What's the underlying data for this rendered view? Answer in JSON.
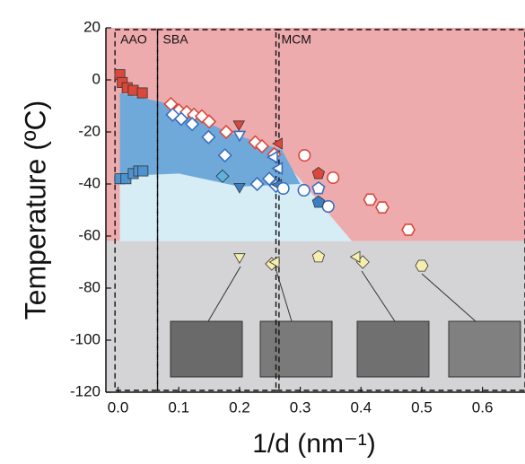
{
  "chart_data": {
    "type": "scatter",
    "y_label": "Temperature (ºC)",
    "x_label": "1/d (nm⁻¹)",
    "xlim": [
      -0.02,
      0.67
    ],
    "ylim": [
      -120,
      20
    ],
    "xticks": [
      {
        "value": 0,
        "label": "0.0"
      },
      0.1,
      0.2,
      0.3,
      0.4,
      0.5,
      0.6
    ],
    "yticks": [
      20,
      0,
      -20,
      -40,
      -60,
      -80,
      -100,
      -120
    ],
    "zones": [
      {
        "label": "AAO",
        "x": [
          -0.005,
          0.065
        ]
      },
      {
        "label": "SBA",
        "x": [
          0.065,
          0.265
        ]
      },
      {
        "label": "MCM",
        "x": [
          0.26,
          0.67
        ]
      }
    ],
    "regions": [
      {
        "color": "#eeabae",
        "x": [
          -0.02,
          0.67,
          0.67,
          -0.02
        ],
        "y": [
          20,
          20,
          -62,
          -62
        ]
      },
      {
        "color": "#d4d4d6",
        "x": [
          -0.02,
          0.67,
          0.67,
          -0.02
        ],
        "y": [
          -62,
          -62,
          -120,
          -120
        ]
      },
      {
        "color": "#d6edf6",
        "x": [
          0.003,
          0.1,
          0.27,
          0.385,
          0.003
        ],
        "y": [
          -5,
          -12,
          -30,
          -62,
          -62
        ]
      },
      {
        "color": "#6fa9d9",
        "x": [
          0.003,
          0.08,
          0.18,
          0.27,
          0.3,
          0.2,
          0.1,
          0.003
        ],
        "y": [
          -5,
          -9,
          -20,
          -27,
          -40,
          -41,
          -36,
          -37
        ]
      }
    ],
    "series": [
      {
        "marker": "square",
        "color": "#d9483b",
        "filled": true,
        "x": [
          0.003,
          0.007,
          0.015,
          0.025,
          0.04
        ],
        "values": [
          2,
          -1,
          -3,
          -4,
          -5
        ]
      },
      {
        "marker": "square",
        "color": "#4d93cf",
        "filled": true,
        "x": [
          0.003,
          0.013,
          0.025,
          0.034,
          0.041
        ],
        "values": [
          -38,
          -38,
          -36,
          -35,
          -35
        ]
      },
      {
        "marker": "diamond",
        "color": "#d9483b",
        "filled": false,
        "x": [
          0.087,
          0.1,
          0.113,
          0.125,
          0.138,
          0.15,
          0.178,
          0.226,
          0.237,
          0.257
        ],
        "values": [
          -9.3,
          -11.7,
          -12.4,
          -13.4,
          -14,
          -16,
          -20,
          -24,
          -25.5,
          -28.6
        ]
      },
      {
        "marker": "diamond",
        "color": "#3b6fc0",
        "filled": false,
        "x": [
          0.09,
          0.104,
          0.122,
          0.149,
          0.176,
          0.229,
          0.249,
          0.26
        ],
        "values": [
          -13.4,
          -15,
          -17,
          -22,
          -29,
          -40,
          -38,
          -40.7
        ]
      },
      {
        "marker": "diamond",
        "color": "#5cb3e0",
        "filled": true,
        "x": [
          0.172
        ],
        "values": [
          -37
        ]
      },
      {
        "marker": "tri-down",
        "color": "#d9483b",
        "filled": true,
        "x": [
          0.199
        ],
        "values": [
          -17
        ]
      },
      {
        "marker": "tri-down",
        "color": "#3b6fc0",
        "filled": false,
        "x": [
          0.2
        ],
        "values": [
          -21
        ]
      },
      {
        "marker": "tri-down",
        "color": "#3b7fc4",
        "filled": true,
        "x": [
          0.2
        ],
        "values": [
          -41
        ]
      },
      {
        "marker": "tri-left",
        "color": "#d9483b",
        "filled": true,
        "x": [
          0.265
        ],
        "values": [
          -24.5
        ]
      },
      {
        "marker": "tri-left",
        "color": "#3b6fc0",
        "filled": false,
        "x": [
          0.257,
          0.265
        ],
        "values": [
          -29.7,
          -34
        ]
      },
      {
        "marker": "tri-left",
        "color": "#3b7fc4",
        "filled": true,
        "x": [
          0.264
        ],
        "values": [
          -40.3
        ]
      },
      {
        "marker": "circle",
        "color": "#d9483b",
        "filled": false,
        "x": [
          0.307,
          0.354
        ],
        "values": [
          -29,
          -37.6
        ]
      },
      {
        "marker": "hexagon",
        "color": "#d9483b",
        "filled": false,
        "x": [
          0.415,
          0.435,
          0.478
        ],
        "values": [
          -46,
          -49,
          -57.6
        ]
      },
      {
        "marker": "circle",
        "color": "#3b6fc0",
        "filled": false,
        "x": [
          0.272,
          0.306,
          0.346
        ],
        "values": [
          -41.7,
          -42.4,
          -48.6
        ]
      },
      {
        "marker": "pentagon",
        "color": "#d9483b",
        "filled": true,
        "x": [
          0.33
        ],
        "values": [
          -36
        ]
      },
      {
        "marker": "pentagon",
        "color": "#3b6fc0",
        "filled": false,
        "x": [
          0.33
        ],
        "values": [
          -41.7
        ]
      },
      {
        "marker": "pentagon",
        "color": "#3b7fc4",
        "filled": true,
        "x": [
          0.33
        ],
        "values": [
          -47
        ]
      },
      {
        "marker": "tri-down",
        "color": "#f6eeae",
        "filled": true,
        "x": [
          0.2
        ],
        "values": [
          -68
        ]
      },
      {
        "marker": "diamond",
        "color": "#f6eeae",
        "filled": true,
        "x": [
          0.253,
          0.403
        ],
        "values": [
          -70.7,
          -70
        ]
      },
      {
        "marker": "tri-left",
        "color": "#f6eeae",
        "filled": true,
        "x": [
          0.26,
          0.393
        ],
        "values": [
          -70,
          -68
        ]
      },
      {
        "marker": "pentagon",
        "color": "#f6eeae",
        "filled": true,
        "x": [
          0.33
        ],
        "values": [
          -68
        ]
      },
      {
        "marker": "hexagon",
        "color": "#f6eeae",
        "filled": true,
        "x": [
          0.5
        ],
        "values": [
          -71.4
        ]
      }
    ]
  }
}
